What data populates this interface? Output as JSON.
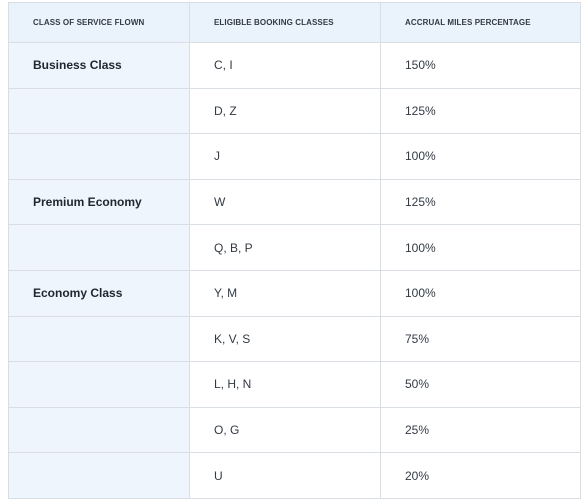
{
  "header": [
    "CLASS OF SERVICE FLOWN",
    "ELIGIBLE BOOKING CLASSES",
    "ACCRUAL MILES PERCENTAGE"
  ],
  "groups": [
    {
      "class": "Business Class",
      "rows": [
        [
          "C, I",
          "150%"
        ],
        [
          "D, Z",
          "125%"
        ],
        [
          "J",
          "100%"
        ]
      ]
    },
    {
      "class": "Premium Economy",
      "rows": [
        [
          "W",
          "125%"
        ],
        [
          "Q, B, P",
          "100%"
        ]
      ]
    },
    {
      "class": "Economy Class",
      "rows": [
        [
          "Y, M",
          "100%"
        ],
        [
          "K, V, S",
          "75%"
        ],
        [
          "L, H, N",
          "50%"
        ],
        [
          "O, G",
          "25%"
        ],
        [
          "U",
          "20%"
        ]
      ]
    }
  ]
}
